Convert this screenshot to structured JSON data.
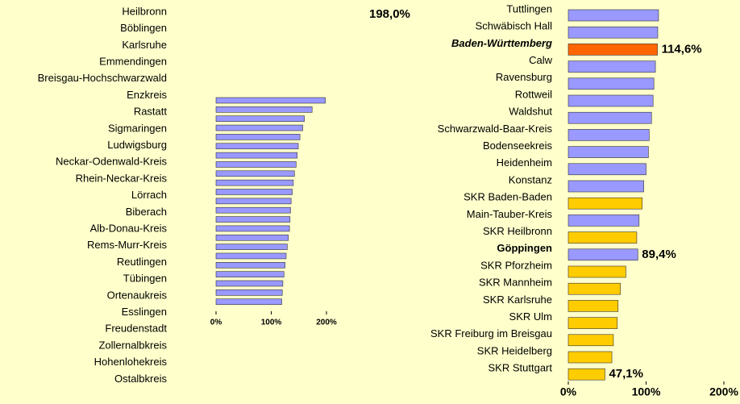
{
  "chart_data": [
    {
      "type": "bar",
      "orientation": "horizontal",
      "categories": [
        "Heilbronn",
        "Böblingen",
        "Karlsruhe",
        "Emmendingen",
        "Breisgau-Hochschwarzwald",
        "Enzkreis",
        "Rastatt",
        "Sigmaringen",
        "Ludwigsburg",
        "Neckar-Odenwald-Kreis",
        "Rhein-Neckar-Kreis",
        "Lörrach",
        "Biberach",
        "Alb-Donau-Kreis",
        "Rems-Murr-Kreis",
        "Reutlingen",
        "Tübingen",
        "Ortenaukreis",
        "Esslingen",
        "Freudenstadt",
        "Zollernalbkreis",
        "Hohenlohekreis",
        "Ostalbkreis"
      ],
      "values": [
        198,
        174,
        160,
        157,
        152,
        149,
        147,
        145,
        142,
        140,
        138,
        136,
        135,
        134,
        133,
        131,
        129,
        127,
        125,
        123,
        121,
        120,
        119
      ],
      "value_labels": [
        "198,0%",
        null,
        null,
        null,
        null,
        null,
        null,
        null,
        null,
        null,
        null,
        null,
        null,
        null,
        null,
        null,
        null,
        null,
        null,
        null,
        null,
        null,
        null
      ],
      "color": "#9999ff",
      "xlim": [
        0,
        200
      ],
      "xticks": [
        {
          "value": 0,
          "label": "0%"
        },
        {
          "value": 100,
          "label": "100%"
        },
        {
          "value": 200,
          "label": "200%"
        }
      ]
    },
    {
      "type": "bar",
      "orientation": "horizontal",
      "categories": [
        "Tuttlingen",
        "Schwäbisch Hall",
        "Baden-Württemberg",
        "Calw",
        "Ravensburg",
        "Rottweil",
        "Waldshut",
        "Schwarzwald-Baar-Kreis",
        "Bodenseekreis",
        "Heidenheim",
        "Konstanz",
        "SKR Baden-Baden",
        "Main-Tauber-Kreis",
        "SKR Heilbronn",
        "Göppingen",
        "SKR Pforzheim",
        "SKR Mannheim",
        "SKR Karlsruhe",
        "SKR Ulm",
        "SKR Freiburg im Breisgau",
        "SKR Heidelberg",
        "SKR Stuttgart"
      ],
      "values": [
        116,
        115,
        114.6,
        112,
        110,
        109,
        107,
        104,
        103,
        100,
        97,
        95,
        91,
        88,
        89.4,
        74,
        67,
        64,
        63,
        58,
        56,
        47.1
      ],
      "value_labels": [
        null,
        null,
        "114,6%",
        null,
        null,
        null,
        null,
        null,
        null,
        null,
        null,
        null,
        null,
        null,
        "89,4%",
        null,
        null,
        null,
        null,
        null,
        null,
        "47,1%"
      ],
      "colors": [
        "#9999ff",
        "#9999ff",
        "#ff6600",
        "#9999ff",
        "#9999ff",
        "#9999ff",
        "#9999ff",
        "#9999ff",
        "#9999ff",
        "#9999ff",
        "#9999ff",
        "#ffcc00",
        "#9999ff",
        "#ffcc00",
        "#9999ff",
        "#ffcc00",
        "#ffcc00",
        "#ffcc00",
        "#ffcc00",
        "#ffcc00",
        "#ffcc00",
        "#ffcc00"
      ],
      "xlim": [
        0,
        200
      ],
      "xticks": [
        {
          "value": 0,
          "label": "0%"
        },
        {
          "value": 100,
          "label": "100%"
        },
        {
          "value": 200,
          "label": "200%"
        }
      ]
    }
  ]
}
